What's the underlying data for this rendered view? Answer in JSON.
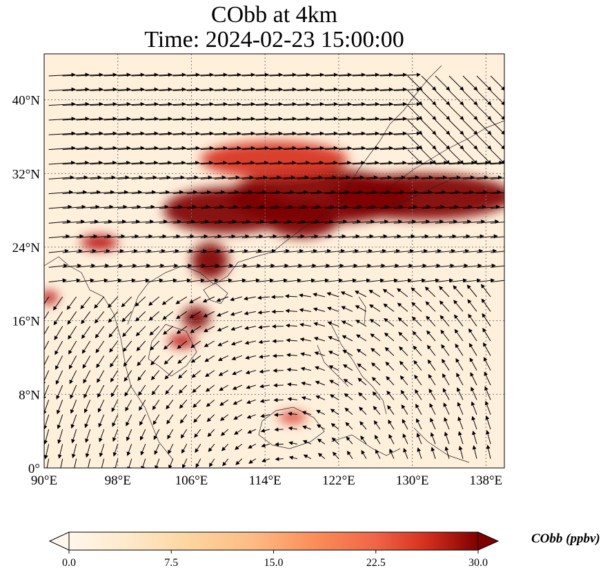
{
  "title_line1": "CObb at 4km",
  "title_line2": "Time: 2024-02-23 15:00:00",
  "map": {
    "lon_range": [
      90,
      140
    ],
    "lat_range": [
      0,
      45
    ],
    "lon_ticks": [
      90,
      98,
      106,
      114,
      122,
      130,
      138
    ],
    "lon_tick_labels": [
      "90°E",
      "98°E",
      "106°E",
      "114°E",
      "122°E",
      "130°E",
      "138°E"
    ],
    "lat_ticks": [
      0,
      8,
      16,
      24,
      32,
      40
    ],
    "lat_tick_labels": [
      "0°",
      "8°N",
      "16°N",
      "24°N",
      "32°N",
      "40°N"
    ],
    "gridlines": true,
    "field_colors": {
      "low": "#fff5eb",
      "mid": "#fdae6b",
      "high": "#7f0000"
    },
    "plume": [
      {
        "lon": 131,
        "lat": 29.5,
        "rx_deg": 10,
        "ry_deg": 2.5,
        "level": 1.0
      },
      {
        "lon": 120,
        "lat": 29.5,
        "rx_deg": 10,
        "ry_deg": 3,
        "level": 1.0
      },
      {
        "lon": 110,
        "lat": 28,
        "rx_deg": 7,
        "ry_deg": 2.5,
        "level": 1.0
      },
      {
        "lon": 118,
        "lat": 27,
        "rx_deg": 4,
        "ry_deg": 2,
        "level": 1.0
      },
      {
        "lon": 115,
        "lat": 33.5,
        "rx_deg": 8,
        "ry_deg": 2,
        "level": 0.6
      },
      {
        "lon": 108,
        "lat": 22.5,
        "rx_deg": 2,
        "ry_deg": 2,
        "level": 0.9
      },
      {
        "lon": 106.5,
        "lat": 16.3,
        "rx_deg": 1.5,
        "ry_deg": 1.2,
        "level": 0.95
      },
      {
        "lon": 105,
        "lat": 13.8,
        "rx_deg": 1.5,
        "ry_deg": 0.7,
        "level": 0.8
      },
      {
        "lon": 96,
        "lat": 24.5,
        "rx_deg": 2,
        "ry_deg": 0.8,
        "level": 0.8
      },
      {
        "lon": 90.5,
        "lat": 18.5,
        "rx_deg": 1,
        "ry_deg": 0.7,
        "level": 0.85
      },
      {
        "lon": 117,
        "lat": 5.5,
        "rx_deg": 1.5,
        "ry_deg": 0.6,
        "level": 0.55
      }
    ]
  },
  "colorbar": {
    "min": 0.0,
    "max": 30.0,
    "ticks": [
      0.0,
      7.5,
      15.0,
      22.5,
      30.0
    ],
    "tick_labels": [
      "0.0",
      "7.5",
      "15.0",
      "22.5",
      "30.0"
    ],
    "label": "CObb (ppbv)",
    "extend": "both",
    "colormap": "OrRd"
  }
}
